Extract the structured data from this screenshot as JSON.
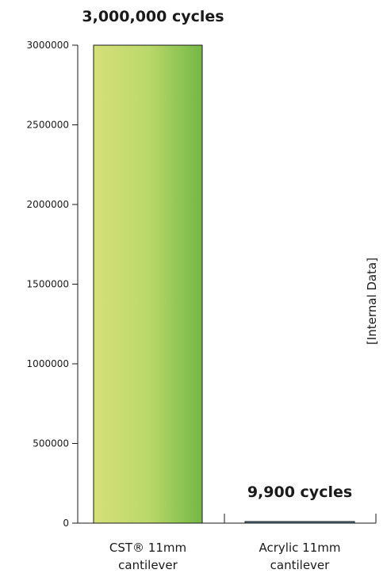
{
  "chart_data": {
    "type": "bar",
    "categories": [
      "CST® 11mm cantilever",
      "Acrylic 11mm cantilever"
    ],
    "category_lines": [
      [
        "CST® 11mm",
        "cantilever"
      ],
      [
        "Acrylic 11mm",
        "cantilever"
      ]
    ],
    "values": [
      3000000,
      9900
    ],
    "data_labels": [
      "3,000,000 cycles",
      "9,900 cycles"
    ],
    "yticks": [
      0,
      500000,
      1000000,
      1500000,
      2000000,
      2500000,
      3000000
    ],
    "ytick_labels": [
      "0",
      "500000",
      "1000000",
      "1500000",
      "2000000",
      "2500000",
      "3000000"
    ],
    "ylim": [
      0,
      3000000
    ],
    "side_note": "[Internal Data]",
    "grid": false,
    "legend": "none",
    "colors": {
      "bar1_gradient_start": "#d6e07a",
      "bar1_gradient_mid": "#bcd86a",
      "bar1_gradient_end": "#73b845",
      "bar2_fill": "#5a7e9c",
      "bar_outline": "#1a1a1a",
      "text": "#1a1a1a"
    }
  }
}
